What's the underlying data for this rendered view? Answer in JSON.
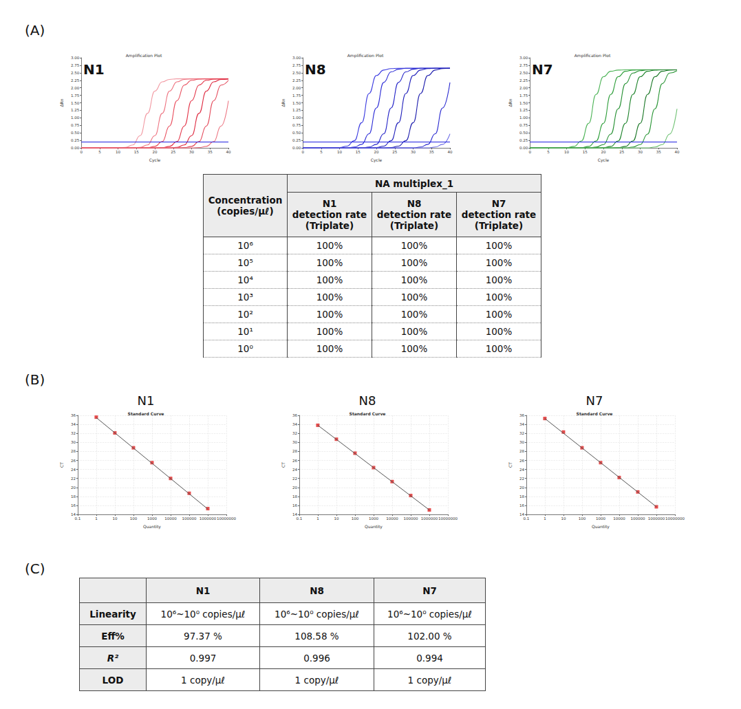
{
  "panel_labels": [
    "(A)",
    "(B)",
    "(C)"
  ],
  "chart_data": [
    {
      "type": "line",
      "title": "Amplification Plot",
      "annotation": "N1",
      "xlabel": "Cycle",
      "ylabel": "ΔRn",
      "x": [
        0,
        2,
        4,
        6,
        8,
        10,
        12,
        14,
        16,
        18,
        20,
        22,
        24,
        26,
        28,
        30,
        32,
        34,
        36,
        38,
        40
      ],
      "series": [
        {
          "color": "#f29aa3",
          "values": [
            0,
            0,
            0,
            0,
            0,
            0,
            0.02,
            0.1,
            0.41,
            1.15,
            1.89,
            2.2,
            2.28,
            2.3,
            2.3,
            2.3,
            2.3,
            2.3,
            2.3,
            2.3,
            2.3
          ]
        },
        {
          "color": "#ee7683",
          "values": [
            0,
            0,
            0,
            0,
            0,
            0,
            0,
            0,
            0.02,
            0.1,
            0.41,
            1.15,
            1.89,
            2.2,
            2.28,
            2.3,
            2.3,
            2.3,
            2.3,
            2.3,
            2.3
          ]
        },
        {
          "color": "#e9505f",
          "values": [
            0,
            0,
            0,
            0,
            0,
            0,
            0,
            0,
            0,
            0.01,
            0.05,
            0.21,
            0.73,
            1.57,
            2.09,
            2.25,
            2.29,
            2.3,
            2.3,
            2.3,
            2.3
          ]
        },
        {
          "color": "#e33448",
          "values": [
            0,
            0,
            0,
            0,
            0,
            0,
            0,
            0,
            0,
            0,
            0,
            0.01,
            0.05,
            0.21,
            0.73,
            1.57,
            2.09,
            2.25,
            2.29,
            2.3,
            2.3
          ]
        },
        {
          "color": "#de2a40",
          "values": [
            0,
            0,
            0,
            0,
            0,
            0,
            0,
            0,
            0,
            0,
            0,
            0,
            0,
            0.02,
            0.1,
            0.41,
            1.15,
            1.89,
            2.2,
            2.28,
            2.3
          ]
        },
        {
          "color": "#e44a5b",
          "values": [
            0,
            0,
            0,
            0,
            0,
            0,
            0,
            0,
            0,
            0,
            0,
            0,
            0,
            0,
            0.01,
            0.05,
            0.21,
            0.73,
            1.57,
            2.09,
            2.25
          ]
        },
        {
          "color": "#ec7582",
          "values": [
            0,
            0,
            0,
            0,
            0,
            0,
            0,
            0,
            0,
            0,
            0,
            0,
            0,
            0,
            0,
            0,
            0.01,
            0.05,
            0.21,
            0.73,
            1.57
          ]
        }
      ],
      "threshold": 0.2,
      "xlim": [
        0,
        40
      ],
      "xticks": [
        0,
        5,
        10,
        15,
        20,
        25,
        30,
        35,
        40
      ],
      "ylim": [
        0,
        3
      ],
      "yticks": [
        {
          "value": 0,
          "label": "0.00"
        },
        {
          "value": 0.25,
          "label": "0.25"
        },
        {
          "value": 0.5,
          "label": "0.50"
        },
        {
          "value": 0.75,
          "label": "0.75"
        },
        {
          "value": 1,
          "label": "1.00"
        },
        {
          "value": 1.25,
          "label": "1.25"
        },
        {
          "value": 1.5,
          "label": "1.50"
        },
        {
          "value": 1.75,
          "label": "1.75"
        },
        {
          "value": 2,
          "label": "2.00"
        },
        {
          "value": 2.25,
          "label": "2.25"
        },
        {
          "value": 2.5,
          "label": "2.50"
        },
        {
          "value": 2.75,
          "label": "2.75"
        },
        {
          "value": 3,
          "label": "3.00"
        }
      ],
      "grid": false
    },
    {
      "type": "line",
      "title": "Amplification Plot",
      "annotation": "N8",
      "xlabel": "Cycle",
      "ylabel": "ΔRn",
      "x": [
        0,
        2,
        4,
        6,
        8,
        10,
        12,
        14,
        16,
        18,
        20,
        22,
        24,
        26,
        28,
        30,
        32,
        34,
        36,
        38,
        40
      ],
      "series": [
        {
          "color": "#3a3ae0",
          "values": [
            0,
            0,
            0,
            0,
            0,
            0.01,
            0.06,
            0.24,
            0.84,
            1.81,
            2.41,
            2.59,
            2.64,
            2.65,
            2.65,
            2.65,
            2.65,
            2.65,
            2.65,
            2.65,
            2.65
          ]
        },
        {
          "color": "#2b2bd6",
          "values": [
            0,
            0,
            0,
            0,
            0,
            0,
            0,
            0.03,
            0.12,
            0.47,
            1.33,
            2.18,
            2.53,
            2.62,
            2.65,
            2.65,
            2.65,
            2.65,
            2.65,
            2.65,
            2.65
          ]
        },
        {
          "color": "#2424c8",
          "values": [
            0,
            0,
            0,
            0,
            0,
            0,
            0,
            0,
            0,
            0.03,
            0.12,
            0.47,
            1.33,
            2.18,
            2.53,
            2.62,
            2.65,
            2.65,
            2.65,
            2.65,
            2.65
          ]
        },
        {
          "color": "#2020bb",
          "values": [
            0,
            0,
            0,
            0,
            0,
            0,
            0,
            0,
            0,
            0,
            0.01,
            0.06,
            0.24,
            0.84,
            1.81,
            2.41,
            2.59,
            2.64,
            2.65,
            2.65,
            2.65
          ]
        },
        {
          "color": "#1c1cad",
          "values": [
            0,
            0,
            0,
            0,
            0,
            0,
            0,
            0,
            0,
            0,
            0,
            0,
            0.01,
            0.06,
            0.24,
            0.84,
            1.81,
            2.41,
            2.59,
            2.64,
            2.65
          ]
        },
        {
          "color": "#2a2ad0",
          "values": [
            0,
            0,
            0,
            0,
            0,
            0,
            0,
            0,
            0,
            0,
            0,
            0,
            0,
            0,
            0,
            0,
            0.03,
            0.12,
            0.47,
            1.33,
            2.18
          ]
        },
        {
          "color": "#6a6ae6",
          "values": [
            0,
            0,
            0,
            0,
            0,
            0,
            0,
            0,
            0,
            0,
            0,
            0,
            0,
            0,
            0,
            0,
            0,
            0,
            0.03,
            0.12,
            0.47
          ]
        }
      ],
      "threshold": 0.2,
      "xlim": [
        0,
        40
      ],
      "xticks": [
        0,
        5,
        10,
        15,
        20,
        25,
        30,
        35,
        40
      ],
      "ylim": [
        0,
        3
      ],
      "yticks": [
        {
          "value": 0,
          "label": "0.00"
        },
        {
          "value": 0.25,
          "label": "0.25"
        },
        {
          "value": 0.5,
          "label": "0.50"
        },
        {
          "value": 0.75,
          "label": "0.75"
        },
        {
          "value": 1,
          "label": "1.00"
        },
        {
          "value": 1.25,
          "label": "1.25"
        },
        {
          "value": 1.5,
          "label": "1.50"
        },
        {
          "value": 1.75,
          "label": "1.75"
        },
        {
          "value": 2,
          "label": "2.00"
        },
        {
          "value": 2.25,
          "label": "2.25"
        },
        {
          "value": 2.5,
          "label": "2.50"
        },
        {
          "value": 2.75,
          "label": "2.75"
        },
        {
          "value": 3,
          "label": "3.00"
        }
      ],
      "grid": false
    },
    {
      "type": "line",
      "title": "Amplification Plot",
      "annotation": "N7",
      "xlabel": "Cycle",
      "ylabel": "ΔRn",
      "x": [
        0,
        2,
        4,
        6,
        8,
        10,
        12,
        14,
        16,
        18,
        20,
        22,
        24,
        26,
        28,
        30,
        32,
        34,
        36,
        38,
        40
      ],
      "series": [
        {
          "color": "#4cb356",
          "values": [
            0,
            0,
            0,
            0,
            0,
            0.01,
            0.05,
            0.23,
            0.82,
            1.78,
            2.37,
            2.55,
            2.59,
            2.6,
            2.6,
            2.6,
            2.6,
            2.6,
            2.6,
            2.6,
            2.6
          ]
        },
        {
          "color": "#2e9e3a",
          "values": [
            0,
            0,
            0,
            0,
            0,
            0,
            0,
            0.01,
            0.05,
            0.23,
            0.82,
            1.78,
            2.37,
            2.55,
            2.59,
            2.6,
            2.6,
            2.6,
            2.6,
            2.6,
            2.6
          ]
        },
        {
          "color": "#259032",
          "values": [
            0,
            0,
            0,
            0,
            0,
            0,
            0,
            0,
            0,
            0.03,
            0.11,
            0.46,
            1.3,
            2.14,
            2.49,
            2.57,
            2.6,
            2.6,
            2.6,
            2.6,
            2.6
          ]
        },
        {
          "color": "#1f842c",
          "values": [
            0,
            0,
            0,
            0,
            0,
            0,
            0,
            0,
            0,
            0,
            0.01,
            0.05,
            0.23,
            0.82,
            1.78,
            2.37,
            2.55,
            2.59,
            2.6,
            2.6,
            2.6
          ]
        },
        {
          "color": "#1b7827",
          "values": [
            0,
            0,
            0,
            0,
            0,
            0,
            0,
            0,
            0,
            0,
            0,
            0,
            0.01,
            0.05,
            0.23,
            0.82,
            1.78,
            2.37,
            2.55,
            2.59,
            2.6
          ]
        },
        {
          "color": "#2a9636",
          "values": [
            0,
            0,
            0,
            0,
            0,
            0,
            0,
            0,
            0,
            0,
            0,
            0,
            0,
            0,
            0.03,
            0.11,
            0.46,
            1.3,
            2.14,
            2.49,
            2.57
          ]
        },
        {
          "color": "#6cc070",
          "values": [
            0,
            0,
            0,
            0,
            0,
            0,
            0,
            0,
            0,
            0,
            0,
            0,
            0,
            0,
            0,
            0,
            0,
            0.03,
            0.11,
            0.46,
            1.3
          ]
        }
      ],
      "threshold": 0.2,
      "xlim": [
        0,
        40
      ],
      "xticks": [
        0,
        5,
        10,
        15,
        20,
        25,
        30,
        35,
        40
      ],
      "ylim": [
        0,
        3
      ],
      "yticks": [
        {
          "value": 0,
          "label": "0.00"
        },
        {
          "value": 0.25,
          "label": "0.25"
        },
        {
          "value": 0.5,
          "label": "0.50"
        },
        {
          "value": 0.75,
          "label": "0.75"
        },
        {
          "value": 1,
          "label": "1.00"
        },
        {
          "value": 1.25,
          "label": "1.25"
        },
        {
          "value": 1.5,
          "label": "1.50"
        },
        {
          "value": 1.75,
          "label": "1.75"
        },
        {
          "value": 2,
          "label": "2.00"
        },
        {
          "value": 2.25,
          "label": "2.25"
        },
        {
          "value": 2.5,
          "label": "2.50"
        },
        {
          "value": 2.75,
          "label": "2.75"
        },
        {
          "value": 3,
          "label": "3.00"
        }
      ],
      "grid": false
    },
    {
      "type": "scatter",
      "title": "Standard Curve",
      "annotation": "N1",
      "xlabel": "Quantity",
      "ylabel": "CT",
      "x": [
        1,
        10,
        100,
        1000,
        10000,
        100000,
        1000000
      ],
      "values": [
        35.6,
        32.1,
        28.8,
        25.5,
        22,
        18.7,
        15.3
      ],
      "color": "#e02020",
      "marker": "square",
      "fit_line": {
        "x": [
          1,
          1000000
        ],
        "values": [
          35.5,
          15.2
        ]
      },
      "log": "x",
      "grid": true,
      "xlim": [
        0.1,
        10000000
      ],
      "xticks": [
        0.1,
        1,
        10,
        100,
        1000,
        10000,
        100000,
        1000000,
        10000000
      ],
      "ylim": [
        14,
        36
      ],
      "yticks": [
        14,
        16,
        18,
        20,
        22,
        24,
        26,
        28,
        30,
        32,
        34,
        36
      ]
    },
    {
      "type": "scatter",
      "title": "Standard Curve",
      "annotation": "N8",
      "xlabel": "Quantity",
      "ylabel": "CT",
      "x": [
        1,
        10,
        100,
        1000,
        10000,
        100000,
        1000000
      ],
      "values": [
        33.8,
        30.7,
        27.6,
        24.4,
        21.3,
        18.2,
        15
      ],
      "color": "#e02020",
      "marker": "square",
      "fit_line": {
        "x": [
          1,
          1000000
        ],
        "values": [
          33.8,
          15
        ]
      },
      "log": "x",
      "grid": true,
      "xlim": [
        0.1,
        10000000
      ],
      "xticks": [
        0.1,
        1,
        10,
        100,
        1000,
        10000,
        100000,
        1000000,
        10000000
      ],
      "ylim": [
        14,
        36
      ],
      "yticks": [
        14,
        16,
        18,
        20,
        22,
        24,
        26,
        28,
        30,
        32,
        34,
        36
      ]
    },
    {
      "type": "scatter",
      "title": "Standard Curve",
      "annotation": "N7",
      "xlabel": "Quantity",
      "ylabel": "CT",
      "x": [
        1,
        10,
        100,
        1000,
        10000,
        100000,
        1000000
      ],
      "values": [
        35.3,
        32.3,
        28.8,
        25.5,
        22.2,
        19,
        15.7
      ],
      "color": "#e02020",
      "marker": "square",
      "fit_line": {
        "x": [
          1,
          1000000
        ],
        "values": [
          35.3,
          15.7
        ]
      },
      "log": "x",
      "grid": true,
      "xlim": [
        0.1,
        10000000
      ],
      "xticks": [
        0.1,
        1,
        10,
        100,
        1000,
        10000,
        100000,
        1000000,
        10000000
      ],
      "ylim": [
        14,
        36
      ],
      "yticks": [
        14,
        16,
        18,
        20,
        22,
        24,
        26,
        28,
        30,
        32,
        34,
        36
      ]
    }
  ],
  "table_a": {
    "row_header": [
      "Concentration",
      "(copies/μℓ)"
    ],
    "group_header": "NA multiplex_1",
    "columns": [
      [
        "N1",
        "detection rate",
        "(Triplate)"
      ],
      [
        "N8",
        "detection rate",
        "(Triplate)"
      ],
      [
        "N7",
        "detection rate",
        "(Triplate)"
      ]
    ],
    "rows": [
      {
        "concentration": "10⁶",
        "values": [
          "100%",
          "100%",
          "100%"
        ]
      },
      {
        "concentration": "10⁵",
        "values": [
          "100%",
          "100%",
          "100%"
        ]
      },
      {
        "concentration": "10⁴",
        "values": [
          "100%",
          "100%",
          "100%"
        ]
      },
      {
        "concentration": "10³",
        "values": [
          "100%",
          "100%",
          "100%"
        ]
      },
      {
        "concentration": "10²",
        "values": [
          "100%",
          "100%",
          "100%"
        ]
      },
      {
        "concentration": "10¹",
        "values": [
          "100%",
          "100%",
          "100%"
        ]
      },
      {
        "concentration": "10⁰",
        "values": [
          "100%",
          "100%",
          "100%"
        ]
      }
    ]
  },
  "table_c": {
    "columns": [
      "N1",
      "N8",
      "N7"
    ],
    "rows": [
      {
        "label": "Linearity",
        "values": [
          "10⁶~10⁰ copies/μℓ",
          "10⁶~10⁰ copies/μℓ",
          "10⁶~10⁰ copies/μℓ"
        ]
      },
      {
        "label": "Eff%",
        "values": [
          "97.37 %",
          "108.58 %",
          "102.00 %"
        ]
      },
      {
        "label": "R²",
        "values": [
          "0.997",
          "0.996",
          "0.994"
        ]
      },
      {
        "label": "LOD",
        "values": [
          "1 copy/μℓ",
          "1 copy/μℓ",
          "1 copy/μℓ"
        ]
      }
    ]
  }
}
